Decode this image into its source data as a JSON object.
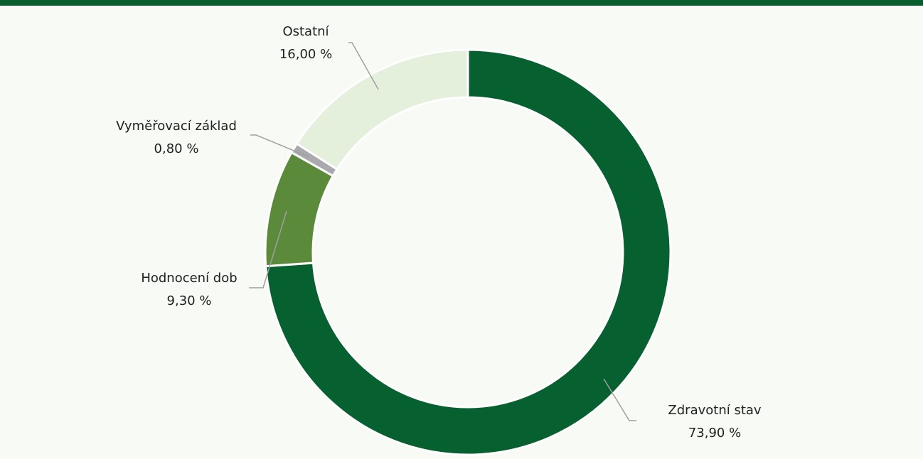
{
  "chart_data": {
    "type": "donut",
    "categories": [
      "Zdravotní stav",
      "Hodnocení dob",
      "Vyměřovací základ",
      "Ostatní"
    ],
    "values": [
      73.9,
      9.3,
      0.8,
      16.0
    ],
    "value_labels": [
      "73,90 %",
      "9,30 %",
      "0,80 %",
      "16,00 %"
    ],
    "colors": [
      "#07602f",
      "#5b8a3a",
      "#a9a9ae",
      "#e4efdc"
    ]
  }
}
